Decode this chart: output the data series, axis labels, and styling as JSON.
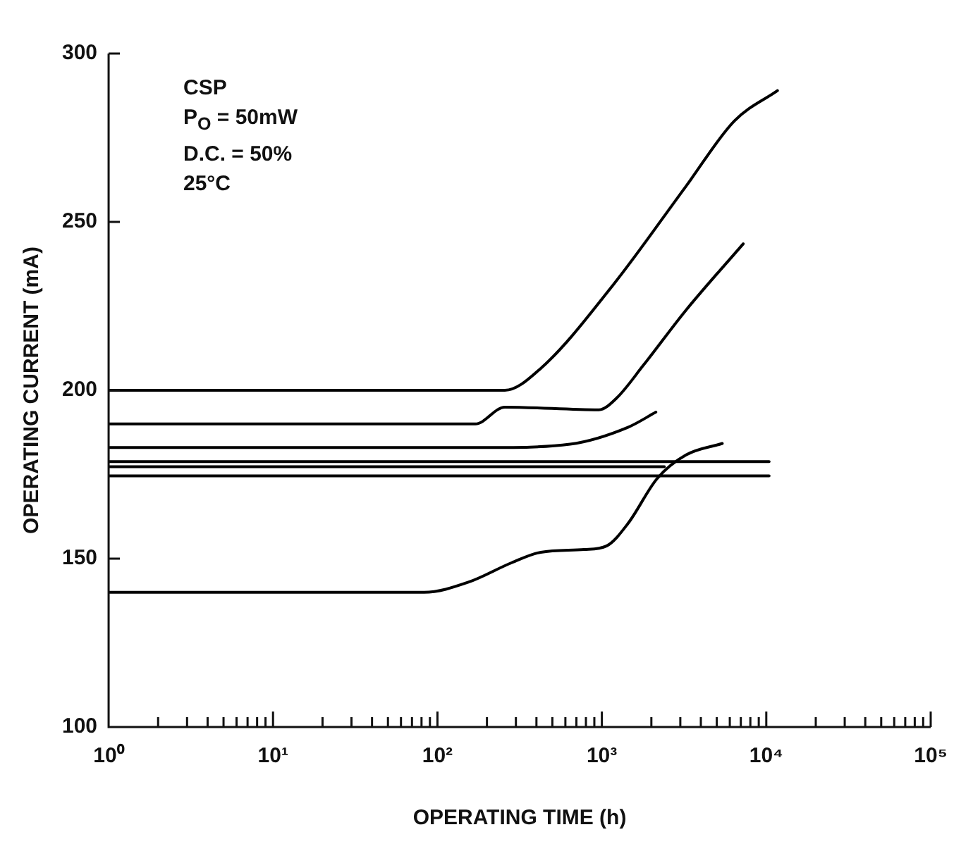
{
  "chart_data": {
    "type": "line",
    "xlabel": "OPERATING TIME (h)",
    "ylabel": "OPERATING CURRENT (mA)",
    "log": "x",
    "grid": false,
    "legend": false,
    "marker": "none",
    "line_style": "solid",
    "xlim": [
      1,
      100000
    ],
    "ylim": [
      100,
      300
    ],
    "xticks": [
      {
        "value": 1,
        "label": "10⁰"
      },
      {
        "value": 2,
        "label": null
      },
      {
        "value": 3,
        "label": null
      },
      {
        "value": 4,
        "label": null
      },
      {
        "value": 5,
        "label": null
      },
      {
        "value": 6,
        "label": null
      },
      {
        "value": 7,
        "label": null
      },
      {
        "value": 8,
        "label": null
      },
      {
        "value": 9,
        "label": null
      },
      {
        "value": 10,
        "label": "10¹"
      },
      {
        "value": 20,
        "label": null
      },
      {
        "value": 30,
        "label": null
      },
      {
        "value": 40,
        "label": null
      },
      {
        "value": 50,
        "label": null
      },
      {
        "value": 60,
        "label": null
      },
      {
        "value": 70,
        "label": null
      },
      {
        "value": 80,
        "label": null
      },
      {
        "value": 90,
        "label": null
      },
      {
        "value": 100,
        "label": "10²"
      },
      {
        "value": 200,
        "label": null
      },
      {
        "value": 300,
        "label": null
      },
      {
        "value": 400,
        "label": null
      },
      {
        "value": 500,
        "label": null
      },
      {
        "value": 600,
        "label": null
      },
      {
        "value": 700,
        "label": null
      },
      {
        "value": 800,
        "label": null
      },
      {
        "value": 900,
        "label": null
      },
      {
        "value": 1000,
        "label": "10³"
      },
      {
        "value": 2000,
        "label": null
      },
      {
        "value": 3000,
        "label": null
      },
      {
        "value": 4000,
        "label": null
      },
      {
        "value": 5000,
        "label": null
      },
      {
        "value": 6000,
        "label": null
      },
      {
        "value": 7000,
        "label": null
      },
      {
        "value": 8000,
        "label": null
      },
      {
        "value": 9000,
        "label": null
      },
      {
        "value": 10000,
        "label": "10⁴"
      },
      {
        "value": 20000,
        "label": null
      },
      {
        "value": 30000,
        "label": null
      },
      {
        "value": 40000,
        "label": null
      },
      {
        "value": 50000,
        "label": null
      },
      {
        "value": 60000,
        "label": null
      },
      {
        "value": 70000,
        "label": null
      },
      {
        "value": 80000,
        "label": null
      },
      {
        "value": 90000,
        "label": null
      },
      {
        "value": 100000,
        "label": "10⁵"
      }
    ],
    "yticks": [
      100,
      150,
      200,
      250,
      300
    ],
    "annotations": [
      "CSP",
      "P$_{O}$ = 50mW",
      "D.C. = 50%",
      "25°C"
    ],
    "series": [
      {
        "color": "#000000",
        "x": [
          1,
          257,
          425,
          1180,
          3250,
          6400,
          11700
        ],
        "values": [
          200,
          200,
          206.5,
          231.5,
          260.6,
          280,
          289
        ]
      },
      {
        "color": "#000000",
        "x": [
          1,
          170,
          257,
          960,
          1230,
          1780,
          3250,
          7240
        ],
        "values": [
          190,
          190,
          195,
          194.2,
          197.7,
          207.3,
          223.8,
          243.5
        ]
      },
      {
        "color": "#000000",
        "x": [
          1,
          209,
          640,
          1440,
          2130
        ],
        "values": [
          183,
          183,
          184,
          189,
          193.5
        ]
      },
      {
        "color": "#000000",
        "x": [
          1,
          10400
        ],
        "values": [
          178.8,
          178.8
        ]
      },
      {
        "color": "#000000",
        "x": [
          1,
          2400
        ],
        "values": [
          177.3,
          177.3
        ]
      },
      {
        "color": "#000000",
        "x": [
          1,
          10400
        ],
        "values": [
          174.6,
          174.6
        ]
      },
      {
        "color": "#000000",
        "x": [
          1,
          83,
          154,
          283,
          425,
          780,
          1070,
          1440,
          2170,
          3250,
          5400
        ],
        "values": [
          140,
          140,
          143,
          148.8,
          151.9,
          152.7,
          153.8,
          160.4,
          173.8,
          180.8,
          184.2
        ]
      }
    ]
  }
}
